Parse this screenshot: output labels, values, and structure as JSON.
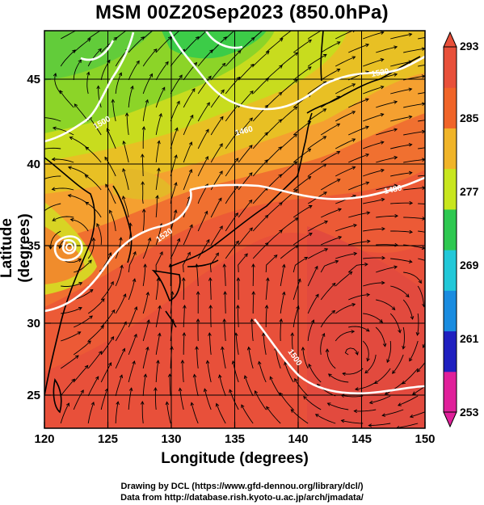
{
  "title": "MSM 00Z20Sep2023 (850.0hPa)",
  "axes": {
    "xlabel": "Longitude (degrees)",
    "ylabel": "Latitude  (degrees)",
    "xticks": [
      "120",
      "125",
      "130",
      "135",
      "140",
      "145",
      "150"
    ],
    "yticks": [
      "25",
      "30",
      "35",
      "40",
      "45"
    ],
    "xlim": [
      120,
      150
    ],
    "ylim": [
      22.4,
      47.6
    ]
  },
  "colorbar": {
    "ticks": [
      "293",
      "285",
      "277",
      "269",
      "261",
      "253"
    ],
    "range": [
      253,
      293
    ],
    "colors": [
      "#e0209a",
      "#2020c0",
      "#1a8ce0",
      "#22c8d8",
      "#2ec850",
      "#c8e61e",
      "#f0b428",
      "#f06428",
      "#e8503a"
    ]
  },
  "contours": [
    "1500",
    "1520",
    "1460",
    "1480",
    "1520",
    "1500"
  ],
  "credits": [
    "Drawing by DCL (https://www.gfd-dennou.org/library/dcl/)",
    "Data from http://database.rish.kyoto-u.ac.jp/arch/jmadata/"
  ]
}
